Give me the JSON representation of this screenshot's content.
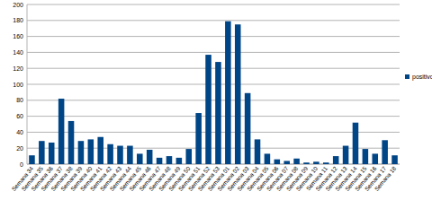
{
  "chart_data": {
    "type": "bar",
    "categories": [
      "Semana 34",
      "Semana 35",
      "Semana 36",
      "Semana 37",
      "Semana 38",
      "Semana 39",
      "Semana 40",
      "Semana 41",
      "Semana 42",
      "Semana 43",
      "Semana 44",
      "Semana 45",
      "Semana 46",
      "Semana 47",
      "Semana 48",
      "Semana 49",
      "Semana 50",
      "Semana 51",
      "Semana 52",
      "Semana 53",
      "Semana 01",
      "Semana 02",
      "Semana 03",
      "Semana 04",
      "Semana 05",
      "Semana 06",
      "Semana 07",
      "Semana 08",
      "Semana 09",
      "Semana 10",
      "Semana 11",
      "Semana 12",
      "Semana 13",
      "Semana 14",
      "Semana 15",
      "Semana 16",
      "Semana 17",
      "Semana 18"
    ],
    "series": [
      {
        "name": "positivos",
        "color": "#004586",
        "values": [
          11,
          29,
          27,
          82,
          54,
          29,
          31,
          34,
          25,
          23,
          23,
          13,
          18,
          8,
          10,
          8,
          19,
          64,
          137,
          128,
          179,
          175,
          89,
          31,
          13,
          6,
          4,
          7,
          2,
          3,
          2,
          10,
          23,
          52,
          19,
          13,
          30,
          11
        ]
      }
    ],
    "ylim": [
      0,
      200
    ],
    "yticks": [
      0,
      20,
      40,
      60,
      80,
      100,
      120,
      140,
      160,
      180,
      200
    ],
    "grid": true,
    "legend": "right"
  }
}
